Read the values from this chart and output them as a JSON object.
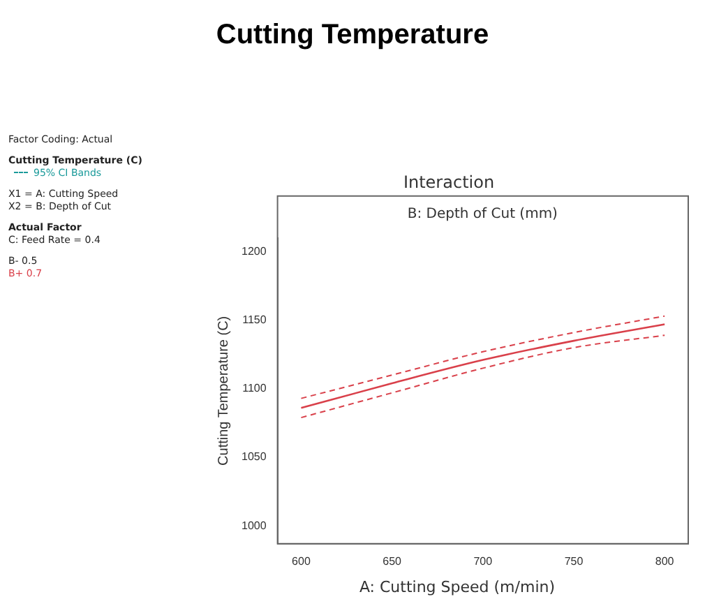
{
  "chart_data": {
    "type": "line",
    "title": "Cutting Temperature",
    "subtitle": "Interaction",
    "legend_title": "B: Depth of Cut (mm)",
    "xlabel": "A: Cutting Speed (m/min)",
    "ylabel": "Cutting Temperature (C)",
    "annotations": [
      "Factor Coding: Actual",
      "Cutting Temperature (C)",
      "95% CI Bands",
      "X1 = A: Cutting Speed",
      "X2 = B: Depth of Cut",
      "Actual Factor",
      "C: Feed Rate = 0.4",
      "B- 0.5"
    ],
    "x": [
      600,
      650,
      700,
      750,
      800
    ],
    "series": [
      {
        "name": "B+ 0.7",
        "color": "#d9404a",
        "values": [
          1086,
          1104,
          1121,
          1135,
          1147
        ]
      },
      {
        "color": "#d9404a",
        "values": [
          1093,
          1110,
          1127,
          1141,
          1153
        ],
        "line_style": "dashed"
      },
      {
        "color": "#d9404a",
        "values": [
          1079,
          1097,
          1115,
          1130,
          1139
        ],
        "line_style": "dashed"
      }
    ],
    "xlim": [
      587,
      813
    ],
    "ylim": [
      987,
      1210
    ],
    "xticks": [
      600,
      650,
      700,
      750,
      800
    ],
    "yticks": [
      1000,
      1050,
      1100,
      1150,
      1200
    ],
    "grid": false,
    "legend": "left",
    "marker": "none",
    "line_style": "solid"
  }
}
